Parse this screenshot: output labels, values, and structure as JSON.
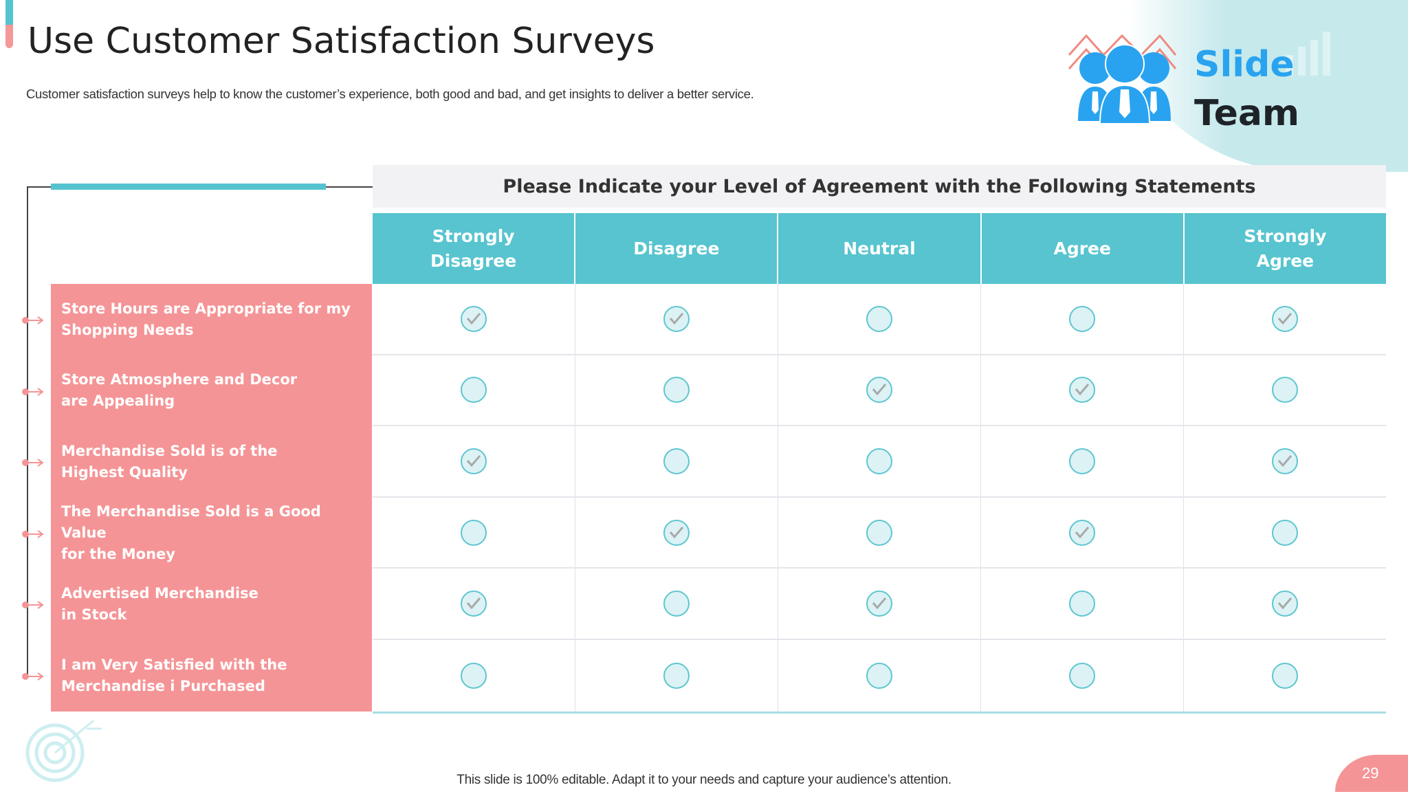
{
  "title": "Use Customer Satisfaction Surveys",
  "subtitle": "Customer satisfaction surveys help to know the customer’s experience, both good and bad, and get insights to deliver a better service.",
  "logo": {
    "line1": "Slide",
    "line2": "Team"
  },
  "survey": {
    "question": "Please Indicate your Level of Agreement with the Following Statements",
    "columns": [
      "Strongly\nDisagree",
      "Disagree",
      "Neutral",
      "Agree",
      "Strongly\nAgree"
    ],
    "rows": [
      {
        "statement": "Store Hours are Appropriate for my\nShopping Needs",
        "checked": [
          true,
          true,
          false,
          false,
          true
        ]
      },
      {
        "statement": "Store Atmosphere and Decor\nare Appealing",
        "checked": [
          false,
          false,
          true,
          true,
          false
        ]
      },
      {
        "statement": "Merchandise Sold is of the\nHighest Quality",
        "checked": [
          true,
          false,
          false,
          false,
          true
        ]
      },
      {
        "statement": "The Merchandise Sold is a Good Value\nfor the Money",
        "checked": [
          false,
          true,
          false,
          true,
          false
        ]
      },
      {
        "statement": "Advertised Merchandise\nin Stock",
        "checked": [
          true,
          false,
          true,
          false,
          true
        ]
      },
      {
        "statement": "I am Very Satisfied with the\nMerchandise i Purchased",
        "checked": [
          false,
          false,
          false,
          false,
          false
        ]
      }
    ]
  },
  "footer": "This slide is 100% editable. Adapt it to your needs and capture your audience’s attention.",
  "page_number": "29",
  "colors": {
    "teal": "#57c4cf",
    "pink": "#f59496",
    "check": "#a9a9a9"
  }
}
